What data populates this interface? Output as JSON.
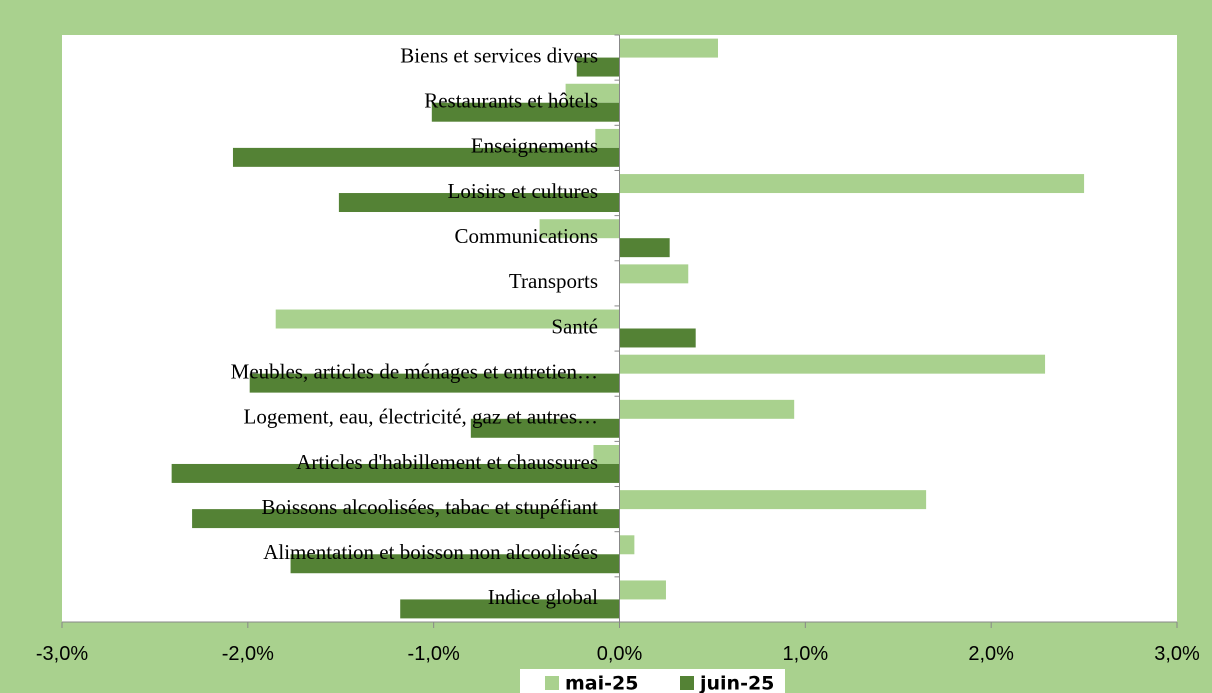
{
  "chart_data": {
    "type": "bar",
    "orientation": "horizontal",
    "categories": [
      "Biens et services divers",
      "Restaurants et hôtels",
      "Enseignements",
      "Loisirs et cultures",
      "Communications",
      "Transports",
      "Santé",
      "Meubles, articles de ménages et entretien…",
      "Logement, eau, électricité, gaz et autres…",
      "Articles d'habillement et chaussures",
      "Boissons alcoolisées, tabac et stupéfiant",
      "Alimentation et boisson non alcoolisées",
      "Indice global"
    ],
    "series": [
      {
        "name": "mai-25",
        "color": "#a9d18e",
        "values": [
          0.53,
          -0.29,
          -0.13,
          2.5,
          -0.43,
          0.37,
          -1.85,
          2.29,
          0.94,
          -0.14,
          1.65,
          0.08,
          0.25
        ]
      },
      {
        "name": "juin-25",
        "color": "#548235",
        "values": [
          -0.23,
          -1.01,
          -2.08,
          -1.51,
          0.27,
          0,
          0.41,
          -1.99,
          -0.8,
          -2.41,
          -2.3,
          -1.77,
          -1.18
        ]
      }
    ],
    "xlim": [
      -3,
      3
    ],
    "xticks": [
      {
        "value": -3,
        "label": "-3,0%"
      },
      {
        "value": -2,
        "label": "-2,0%"
      },
      {
        "value": -1,
        "label": "-1,0%"
      },
      {
        "value": 0,
        "label": "0,0%"
      },
      {
        "value": 1,
        "label": "1,0%"
      },
      {
        "value": 2,
        "label": "2,0%"
      },
      {
        "value": 3,
        "label": "3,0%"
      }
    ],
    "legend": "bottom"
  }
}
